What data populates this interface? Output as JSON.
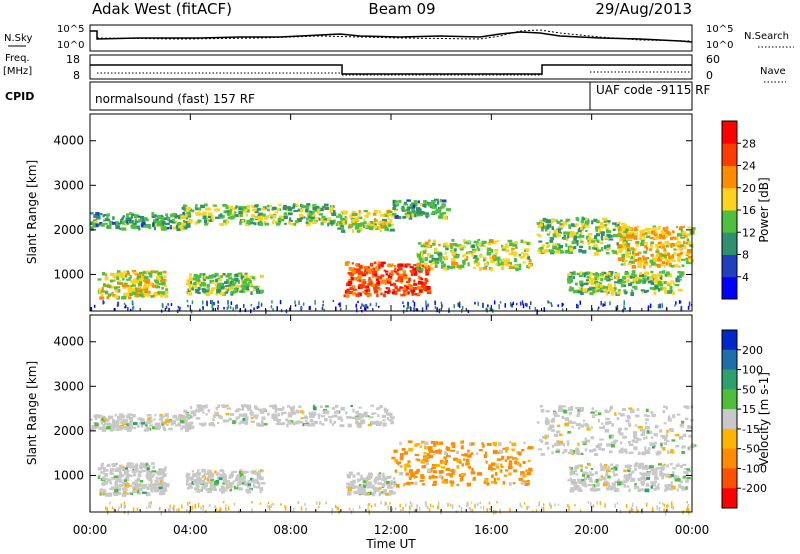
{
  "header": {
    "station": "Adak West (fitACF)",
    "beam": "Beam 09",
    "date": "29/Aug/2013"
  },
  "status_panels": {
    "nsky_label": "N.Sky",
    "nsearch_label": "N.Search",
    "noise_ticks": [
      "10^5",
      "10^0"
    ],
    "freq_label_1": "Freq.",
    "freq_label_2": "[MHz]",
    "freq_ticks": [
      "18",
      "8"
    ],
    "nave_label": "Nave",
    "nave_ticks": [
      "60",
      "0"
    ],
    "cpid_label": "CPID",
    "cpid_left": "normalsound (fast) 157 RF",
    "cpid_right": "UAF code -9115 RF"
  },
  "chart_data": [
    {
      "type": "heatmap",
      "title": "",
      "quantity": "Power",
      "ylabel": "Slant Range [km]",
      "y_ticks": [
        1000,
        2000,
        3000,
        4000
      ],
      "ylim": [
        180,
        4600
      ],
      "xlim_hours": [
        0,
        24
      ],
      "colorbar_label": "Power [dB]",
      "colorbar_ticks": [
        "4",
        "8",
        "12",
        "16",
        "20",
        "24",
        "28"
      ],
      "colorbar_colors": [
        "#0000ff",
        "#1f3fbf",
        "#2f8f6f",
        "#4fbf3f",
        "#ffd21f",
        "#ff8c00",
        "#ff3c00",
        "#ff0000"
      ],
      "echo_regions": [
        {
          "t0": 0.0,
          "t1": 4.0,
          "r0": 2050,
          "r1": 2400,
          "level": 0.35
        },
        {
          "t0": 3.6,
          "t1": 9.8,
          "r0": 2150,
          "r1": 2600,
          "level": 0.45
        },
        {
          "t0": 9.8,
          "t1": 12.0,
          "r0": 2000,
          "r1": 2450,
          "level": 0.5
        },
        {
          "t0": 12.0,
          "t1": 14.2,
          "r0": 2300,
          "r1": 2700,
          "level": 0.35
        },
        {
          "t0": 0.3,
          "t1": 3.0,
          "r0": 500,
          "r1": 1100,
          "level": 0.55
        },
        {
          "t0": 3.8,
          "t1": 6.8,
          "r0": 600,
          "r1": 1050,
          "level": 0.45
        },
        {
          "t0": 10.1,
          "t1": 13.5,
          "r0": 550,
          "r1": 1300,
          "level": 0.85
        },
        {
          "t0": 13.0,
          "t1": 17.5,
          "r0": 1150,
          "r1": 1800,
          "level": 0.5
        },
        {
          "t0": 17.8,
          "t1": 21.5,
          "r0": 1500,
          "r1": 2300,
          "level": 0.45
        },
        {
          "t0": 21.0,
          "t1": 24.0,
          "r0": 1200,
          "r1": 2100,
          "level": 0.6
        },
        {
          "t0": 19.0,
          "t1": 23.5,
          "r0": 600,
          "r1": 1100,
          "level": 0.45
        }
      ]
    },
    {
      "type": "heatmap",
      "title": "",
      "quantity": "Velocity",
      "ylabel": "Slant Range [km]",
      "y_ticks": [
        1000,
        2000,
        3000,
        4000
      ],
      "ylim": [
        180,
        4600
      ],
      "xlim_hours": [
        0,
        24
      ],
      "colorbar_label": "Velocity [m s-1]",
      "colorbar_ticks": [
        "200",
        "100",
        "50",
        "15",
        "-15",
        "-50",
        "-100",
        "-200"
      ],
      "colorbar_colors": [
        "#0028c8",
        "#1e6eaa",
        "#2ea06e",
        "#4fbe3c",
        "#c8c8c8",
        "#ffb400",
        "#ff8c00",
        "#ff5000",
        "#ff0000"
      ],
      "echo_regions": [
        {
          "t0": 0.0,
          "t1": 4.0,
          "r0": 2050,
          "r1": 2400,
          "color": "grey"
        },
        {
          "t0": 3.6,
          "t1": 12.0,
          "r0": 2150,
          "r1": 2600,
          "color": "grey"
        },
        {
          "t0": 0.3,
          "t1": 3.0,
          "r0": 600,
          "r1": 1300,
          "color": "grey"
        },
        {
          "t0": 3.8,
          "t1": 6.8,
          "r0": 650,
          "r1": 1150,
          "color": "grey"
        },
        {
          "t0": 10.2,
          "t1": 12.0,
          "r0": 600,
          "r1": 1100,
          "color": "grey"
        },
        {
          "t0": 12.0,
          "t1": 17.6,
          "r0": 800,
          "r1": 1800,
          "color": "orange"
        },
        {
          "t0": 17.8,
          "t1": 24.0,
          "r0": 1500,
          "r1": 2600,
          "color": "grey"
        },
        {
          "t0": 19.0,
          "t1": 23.8,
          "r0": 700,
          "r1": 1300,
          "color": "grey"
        }
      ]
    }
  ],
  "x_axis": {
    "label": "Time UT",
    "ticks": [
      "00:00",
      "04:00",
      "08:00",
      "12:00",
      "16:00",
      "20:00",
      "00:00"
    ]
  }
}
